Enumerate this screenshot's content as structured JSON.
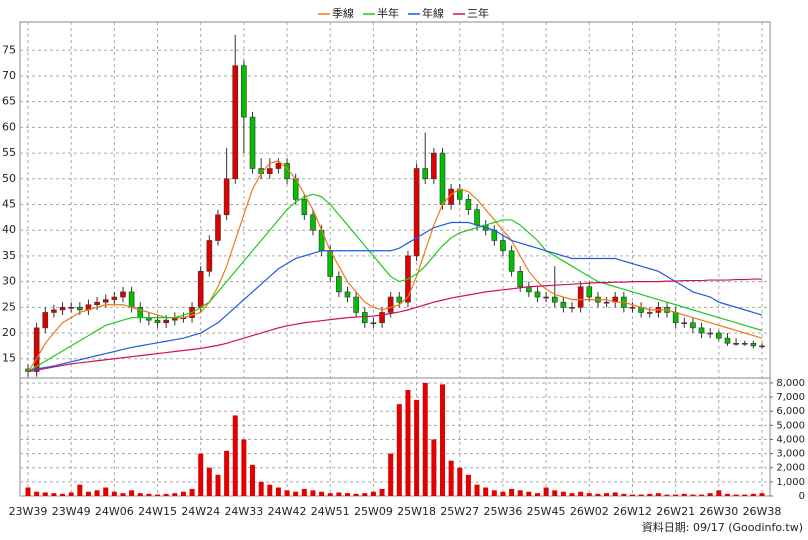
{
  "chart_data": {
    "type": "candlestick",
    "categories": [
      "23W39",
      null,
      null,
      null,
      null,
      "23W49",
      null,
      null,
      null,
      null,
      "24W06",
      null,
      null,
      null,
      null,
      "24W15",
      null,
      null,
      null,
      null,
      "24W24",
      null,
      null,
      null,
      null,
      "24W33",
      null,
      null,
      null,
      null,
      "24W42",
      null,
      null,
      null,
      null,
      "24W51",
      null,
      null,
      null,
      null,
      "25W09",
      null,
      null,
      null,
      null,
      "25W18",
      null,
      null,
      null,
      null,
      "25W27",
      null,
      null,
      null,
      null,
      "25W36",
      null,
      null,
      null,
      null,
      "25W45",
      null,
      null,
      null,
      null,
      "26W02",
      null,
      null,
      null,
      null,
      "26W12",
      null,
      null,
      null,
      null,
      "26W21",
      null,
      null,
      null,
      null,
      "26W30",
      null,
      null,
      null,
      null,
      "26W38"
    ],
    "open": [
      13,
      12.5,
      21,
      24,
      24.5,
      25,
      25,
      24.5,
      25.5,
      26,
      26.5,
      27,
      28,
      25,
      23,
      22.5,
      22,
      22.5,
      23,
      23,
      25,
      32,
      38,
      43,
      50,
      72,
      62,
      52,
      51,
      52,
      53,
      50,
      46,
      43,
      40,
      36,
      31,
      28,
      27,
      24,
      22,
      22,
      24,
      27,
      26,
      35,
      52,
      50,
      55,
      45,
      48,
      46,
      44,
      41,
      40,
      38,
      36,
      32,
      29,
      28,
      27,
      27,
      26,
      25,
      25,
      29,
      27,
      26,
      26,
      27,
      25,
      25,
      24,
      24,
      25,
      24,
      22,
      22,
      21,
      20,
      20,
      19,
      18,
      18,
      18,
      17.5
    ],
    "high": [
      14,
      22,
      25,
      25.5,
      26,
      26,
      26,
      26.5,
      27,
      27.5,
      28,
      29,
      29,
      26,
      24,
      23.5,
      23.5,
      24,
      24,
      26,
      33,
      39,
      44,
      56,
      78,
      73,
      63,
      54,
      54,
      54,
      54,
      51,
      47,
      44,
      41,
      37,
      32,
      29,
      28,
      25,
      23,
      25,
      28,
      28,
      36,
      53,
      59,
      56,
      56,
      49,
      49,
      47,
      45,
      42,
      41,
      39,
      37,
      33,
      30,
      29,
      28,
      33,
      27,
      26,
      30,
      30,
      28,
      27,
      28,
      28,
      26,
      26,
      25,
      26,
      26,
      25,
      23,
      23,
      22,
      21,
      20.5,
      20,
      19,
      18.5,
      18.5,
      18
    ],
    "low": [
      11.5,
      11.5,
      20,
      23,
      23.5,
      24,
      23.5,
      23.5,
      24.5,
      25,
      25.5,
      26,
      24,
      22,
      21.5,
      21,
      21,
      21.5,
      22,
      22,
      24,
      31,
      37,
      42,
      49,
      55,
      51,
      50,
      50,
      51,
      49,
      45,
      42,
      39,
      35,
      30,
      27,
      26,
      23,
      21,
      21,
      21,
      23,
      25,
      25,
      34,
      49,
      49,
      44,
      44,
      45,
      43,
      40,
      39,
      37,
      35,
      31,
      28,
      27,
      26,
      26,
      25,
      24,
      24,
      24,
      26,
      25,
      25,
      25,
      24,
      24,
      23,
      23,
      23,
      23,
      21,
      21,
      20,
      19,
      19,
      18.5,
      17.5,
      17.5,
      17.5,
      17,
      17
    ],
    "close": [
      12.5,
      21,
      24,
      24.5,
      25,
      25,
      24.5,
      25.5,
      26,
      26.5,
      27,
      28,
      25,
      23,
      22.5,
      22,
      22.5,
      23,
      23,
      25,
      32,
      38,
      43,
      50,
      72,
      62,
      52,
      51,
      52,
      53,
      50,
      46,
      43,
      40,
      36,
      31,
      28,
      27,
      24,
      22,
      22,
      24,
      27,
      26,
      35,
      52,
      50,
      55,
      45,
      48,
      46,
      44,
      41,
      40,
      38,
      36,
      32,
      29,
      28,
      27,
      27,
      26,
      25,
      25,
      29,
      27,
      26,
      26,
      27,
      25,
      25,
      24,
      24,
      25,
      24,
      22,
      22,
      21,
      20,
      20,
      19,
      18,
      18,
      18,
      17.5,
      17.5
    ],
    "up_color": "#e00000",
    "down_color": "#00c000",
    "ylim": [
      11.25,
      80.5
    ],
    "yticks": [
      15,
      20,
      25,
      30,
      35,
      40,
      45,
      50,
      55,
      60,
      65,
      70,
      75
    ],
    "grid": true,
    "series": [
      {
        "name": "季線",
        "color": "#f07818",
        "values": [
          12.5,
          15,
          18,
          20,
          22,
          23,
          24,
          24.5,
          25,
          25.5,
          25.5,
          25.5,
          25,
          24.5,
          24,
          23.5,
          23,
          23,
          23,
          23.5,
          24,
          26,
          29,
          33,
          38,
          43,
          48,
          51,
          53,
          53.5,
          52,
          50,
          47,
          44,
          40,
          36,
          33,
          30,
          28,
          26,
          25,
          24.5,
          25,
          25.5,
          27,
          31,
          36,
          41,
          45,
          47,
          48,
          47.5,
          46,
          44,
          42,
          40,
          38,
          35,
          32,
          30,
          28.5,
          27.5,
          27,
          26.5,
          26.5,
          26.5,
          26.5,
          26.5,
          26,
          26,
          25.5,
          25,
          24.5,
          24.5,
          24.5,
          24,
          23.5,
          23,
          22.5,
          22,
          21.5,
          21,
          20.5,
          20,
          19.5,
          19
        ]
      },
      {
        "name": "半年",
        "color": "#20c820",
        "values": [
          12.5,
          13.5,
          14.5,
          15.5,
          16.5,
          17.5,
          18.5,
          19.5,
          20.5,
          21.5,
          22,
          22.5,
          23,
          23,
          23,
          23,
          23,
          23,
          23.5,
          24,
          25,
          26,
          28,
          30,
          32,
          34,
          36,
          38,
          40,
          42,
          44,
          45.5,
          46.5,
          47,
          46.5,
          45,
          43,
          41,
          39,
          37,
          35,
          33,
          31,
          30,
          30.5,
          31.5,
          33,
          35,
          37,
          38.5,
          39.5,
          40,
          40.5,
          41,
          41.5,
          42,
          42,
          41,
          39.5,
          38,
          36,
          35,
          34,
          33,
          32,
          31,
          30,
          29.5,
          29,
          28.5,
          28,
          27.5,
          27,
          26.5,
          26,
          25.5,
          25,
          24.5,
          24,
          23.5,
          23,
          22.5,
          22,
          21.5,
          21,
          20.5
        ]
      },
      {
        "name": "年線",
        "color": "#1a5ce0",
        "values": [
          12.5,
          13,
          13.3,
          13.6,
          14,
          14.4,
          14.8,
          15.2,
          15.6,
          16,
          16.4,
          16.8,
          17.2,
          17.5,
          17.8,
          18.1,
          18.4,
          18.7,
          19,
          19.5,
          20,
          21,
          22,
          23.5,
          25,
          26.5,
          28,
          29.5,
          31,
          32.5,
          33.5,
          34.5,
          35,
          35.5,
          36,
          36,
          36,
          36,
          36,
          36,
          36,
          36,
          36,
          36.5,
          37.5,
          38.5,
          39.5,
          40.5,
          41,
          41.5,
          41.5,
          41.5,
          41,
          40.5,
          40,
          39,
          38,
          37.5,
          37,
          36.5,
          36,
          35.5,
          35,
          34.5,
          34.5,
          34.5,
          34.5,
          34.5,
          34.5,
          34,
          33.5,
          33,
          32.5,
          32,
          31,
          30,
          29,
          28,
          27.5,
          27,
          26,
          25.5,
          25,
          24.5,
          24,
          23.5
        ]
      },
      {
        "name": "三年",
        "color": "#d0105a",
        "values": [
          12.5,
          12.8,
          13.1,
          13.4,
          13.7,
          14,
          14.2,
          14.4,
          14.6,
          14.8,
          15,
          15.2,
          15.4,
          15.6,
          15.8,
          16,
          16.2,
          16.4,
          16.6,
          16.8,
          17,
          17.3,
          17.6,
          18,
          18.5,
          19,
          19.5,
          20,
          20.5,
          21,
          21.4,
          21.7,
          22,
          22.2,
          22.4,
          22.6,
          22.8,
          23,
          23.1,
          23.2,
          23.3,
          23.5,
          23.8,
          24.1,
          24.5,
          25,
          25.5,
          26,
          26.4,
          26.8,
          27.1,
          27.4,
          27.7,
          28,
          28.2,
          28.4,
          28.6,
          28.8,
          29,
          29.1,
          29.2,
          29.3,
          29.4,
          29.5,
          29.6,
          29.7,
          29.8,
          29.8,
          29.9,
          29.9,
          30,
          30,
          30,
          30,
          30.1,
          30.1,
          30.2,
          30.2,
          30.2,
          30.3,
          30.3,
          30.3,
          30.4,
          30.4,
          30.5,
          30.5
        ]
      }
    ],
    "volume": {
      "color": "#e00000",
      "values": [
        600,
        300,
        250,
        200,
        150,
        250,
        800,
        300,
        400,
        600,
        300,
        200,
        400,
        200,
        150,
        100,
        150,
        200,
        300,
        500,
        3000,
        2000,
        1500,
        3200,
        5700,
        4000,
        2200,
        1000,
        800,
        600,
        400,
        300,
        500,
        400,
        300,
        200,
        250,
        200,
        150,
        200,
        300,
        500,
        3000,
        6500,
        7500,
        6800,
        8000,
        4000,
        7900,
        2500,
        2000,
        1500,
        800,
        600,
        400,
        300,
        500,
        400,
        300,
        200,
        600,
        400,
        300,
        200,
        300,
        200,
        150,
        200,
        250,
        150,
        100,
        100,
        150,
        200,
        100,
        100,
        150,
        100,
        100,
        200,
        400,
        150,
        100,
        100,
        150,
        200
      ],
      "ylim": [
        0,
        8350
      ],
      "yticks": [
        0,
        {
          "value": 1000,
          "label": "1,000"
        },
        {
          "value": 2000,
          "label": "2,000"
        },
        {
          "value": 3000,
          "label": "3,000"
        },
        {
          "value": 4000,
          "label": "4,000"
        },
        {
          "value": 5000,
          "label": "5,000"
        },
        {
          "value": 6000,
          "label": "6,000"
        },
        {
          "value": 7000,
          "label": "7,000"
        },
        {
          "value": 8000,
          "label": "8,000"
        }
      ]
    },
    "annotation": "資料日期: 09/17  (Goodinfo.tw)"
  }
}
